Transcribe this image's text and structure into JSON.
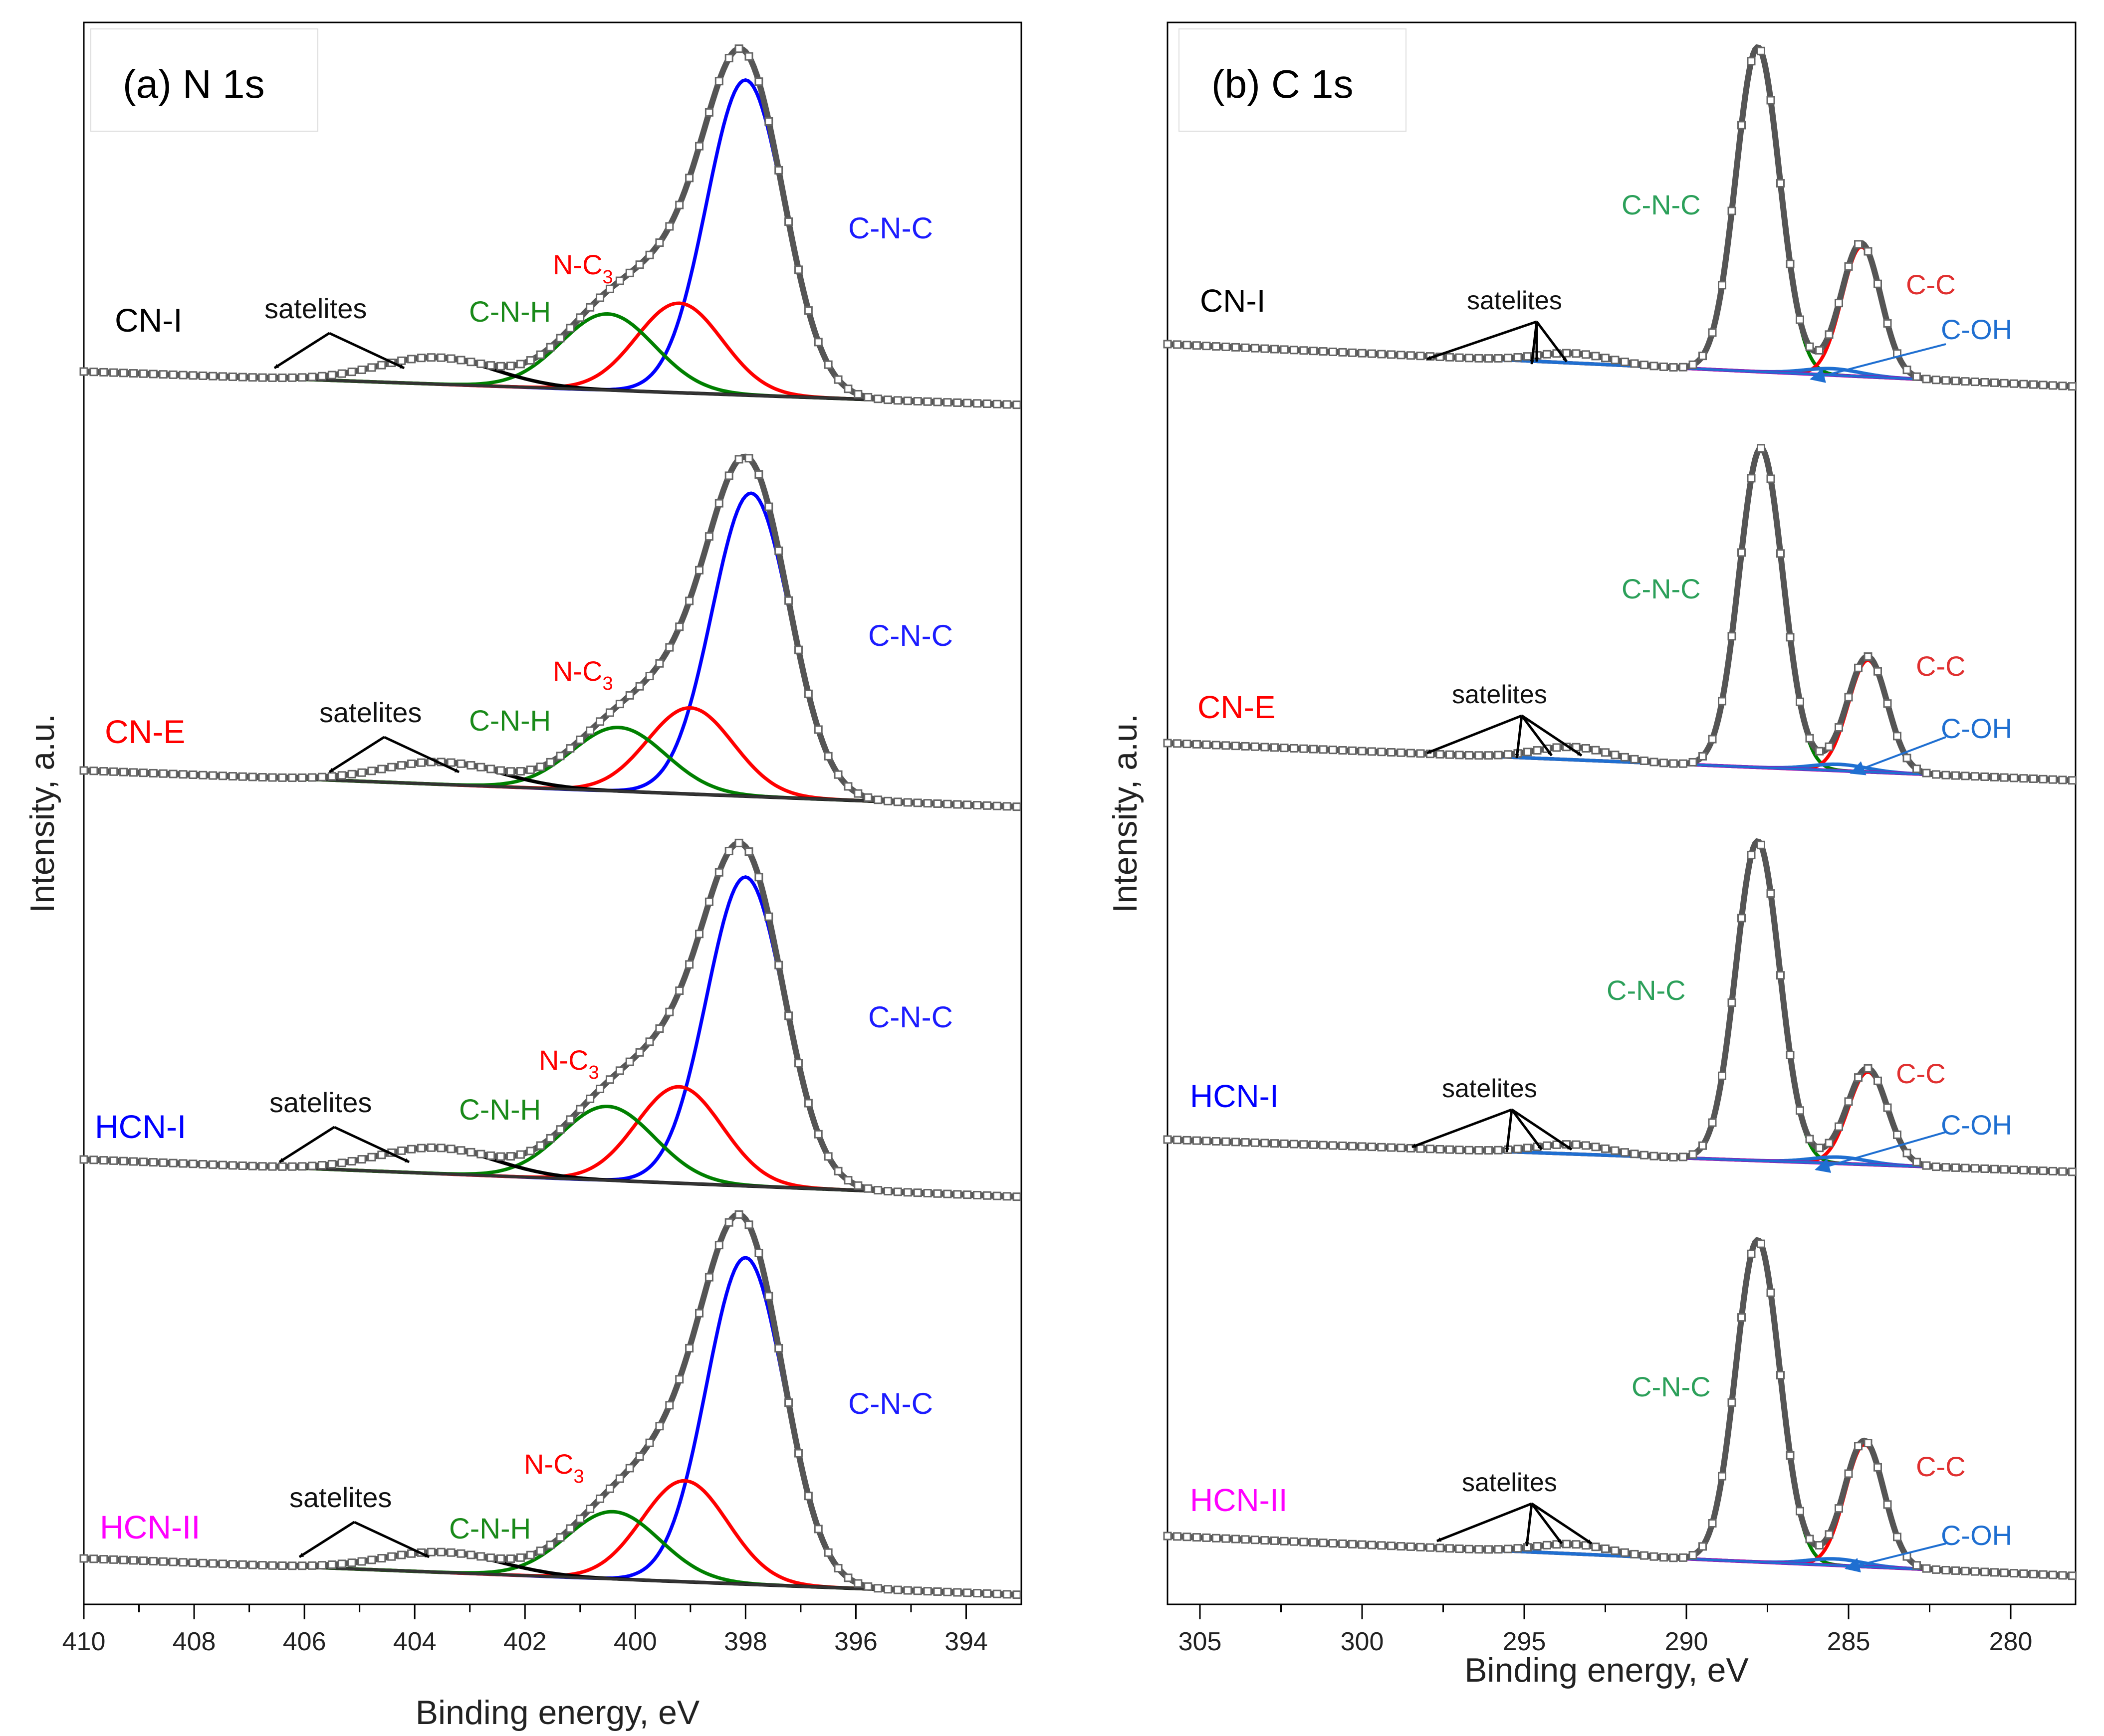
{
  "figure": {
    "panels": [
      {
        "title": "(a) N 1s",
        "xlabel": "Binding energy, eV",
        "ylabel": "Intensity, a.u.",
        "samples": [
          "CN-I",
          "CN-E",
          "HCN-I",
          "HCN-II"
        ],
        "peak_labels": [
          "C-N-C",
          "N-C3",
          "C-N-H",
          "satelites"
        ]
      },
      {
        "title": "(b) C 1s",
        "xlabel": "Binding energy, eV",
        "ylabel": "Intensity, a.u.",
        "samples": [
          "CN-I",
          "CN-E",
          "HCN-I",
          "HCN-II"
        ],
        "peak_labels": [
          "C-N-C",
          "C-C",
          "C-OH",
          "satelites"
        ]
      }
    ]
  },
  "chart_data": [
    {
      "type": "line",
      "title": "(a) N 1s",
      "xlabel": "Binding energy, eV",
      "ylabel": "Intensity, a.u.",
      "xlim": [
        410,
        393
      ],
      "x_reversed": true,
      "xticks": [
        410,
        408,
        406,
        404,
        402,
        400,
        398,
        396,
        394
      ],
      "tick_labels": [
        "410",
        "408",
        "406",
        "404",
        "402",
        "400",
        "398",
        "396",
        "394"
      ],
      "peaks_eV": {
        "C-N-C": 398.0,
        "N-C3": 399.2,
        "C-N-H": 400.5,
        "satelites": 403.6
      },
      "samples": [
        {
          "name": "CN-I",
          "color": "#000000",
          "components": [
            {
              "label": "C-N-C",
              "center": 398.0,
              "height": 0.95,
              "color": "#0000ff"
            },
            {
              "label": "N-C3",
              "center": 399.2,
              "height": 0.27,
              "color": "#ff0000"
            },
            {
              "label": "C-N-H",
              "center": 400.5,
              "height": 0.23,
              "color": "#008000"
            },
            {
              "label": "satelites",
              "center": 403.6,
              "height": 0.08,
              "color": "#000000"
            }
          ]
        },
        {
          "name": "CN-E",
          "color": "#ff0000",
          "components": [
            {
              "label": "C-N-C",
              "center": 397.9,
              "height": 0.95,
              "color": "#0000ff"
            },
            {
              "label": "N-C3",
              "center": 399.0,
              "height": 0.27,
              "color": "#ff0000"
            },
            {
              "label": "C-N-H",
              "center": 400.3,
              "height": 0.2,
              "color": "#008000"
            },
            {
              "label": "satelites",
              "center": 403.5,
              "height": 0.07,
              "color": "#000000"
            }
          ]
        },
        {
          "name": "HCN-I",
          "color": "#0000ff",
          "components": [
            {
              "label": "C-N-C",
              "center": 398.0,
              "height": 0.96,
              "color": "#0000ff"
            },
            {
              "label": "N-C3",
              "center": 399.2,
              "height": 0.3,
              "color": "#ff0000"
            },
            {
              "label": "C-N-H",
              "center": 400.5,
              "height": 0.23,
              "color": "#008000"
            },
            {
              "label": "satelites",
              "center": 403.6,
              "height": 0.08,
              "color": "#000000"
            }
          ]
        },
        {
          "name": "HCN-II",
          "color": "#ff00ff",
          "components": [
            {
              "label": "C-N-C",
              "center": 398.0,
              "height": 0.97,
              "color": "#0000ff"
            },
            {
              "label": "N-C3",
              "center": 399.1,
              "height": 0.3,
              "color": "#ff0000"
            },
            {
              "label": "C-N-H",
              "center": 400.4,
              "height": 0.2,
              "color": "#008000"
            },
            {
              "label": "satelites",
              "center": 403.5,
              "height": 0.06,
              "color": "#000000"
            }
          ]
        }
      ]
    },
    {
      "type": "line",
      "title": "(b) C 1s",
      "xlabel": "Binding energy, eV",
      "ylabel": "Intensity, a.u.",
      "xlim": [
        306,
        278
      ],
      "x_reversed": true,
      "xticks": [
        305,
        300,
        295,
        290,
        285,
        280
      ],
      "tick_labels": [
        "305",
        "300",
        "295",
        "290",
        "285",
        "280"
      ],
      "peaks_eV": {
        "C-N-C": 287.8,
        "C-C": 284.6,
        "C-OH": 285.5,
        "satelites": 293.5
      },
      "samples": [
        {
          "name": "CN-I",
          "color": "#000000",
          "components": [
            {
              "label": "C-N-C",
              "center": 287.8,
              "height": 1.0,
              "color": "#008000"
            },
            {
              "label": "C-C",
              "center": 284.6,
              "height": 0.4,
              "color": "#ff0000"
            },
            {
              "label": "C-OH",
              "center": 285.5,
              "height": 0.02,
              "color": "#1f6fd1"
            },
            {
              "label": "satelites",
              "center": 293.5,
              "height": 0.03,
              "color": "#b000b0"
            }
          ]
        },
        {
          "name": "CN-E",
          "color": "#ff0000",
          "components": [
            {
              "label": "C-N-C",
              "center": 287.7,
              "height": 1.0,
              "color": "#008000"
            },
            {
              "label": "C-C",
              "center": 284.4,
              "height": 0.35,
              "color": "#ff0000"
            },
            {
              "label": "C-OH",
              "center": 285.3,
              "height": 0.02,
              "color": "#1f6fd1"
            },
            {
              "label": "satelites",
              "center": 293.5,
              "height": 0.04,
              "color": "#b000b0"
            }
          ]
        },
        {
          "name": "HCN-I",
          "color": "#0000ff",
          "components": [
            {
              "label": "C-N-C",
              "center": 287.8,
              "height": 1.0,
              "color": "#008000"
            },
            {
              "label": "C-C",
              "center": 284.4,
              "height": 0.29,
              "color": "#ff0000"
            },
            {
              "label": "C-OH",
              "center": 285.3,
              "height": 0.02,
              "color": "#1f6fd1"
            },
            {
              "label": "satelites",
              "center": 293.5,
              "height": 0.03,
              "color": "#b000b0"
            }
          ]
        },
        {
          "name": "HCN-II",
          "color": "#ff00ff",
          "components": [
            {
              "label": "C-N-C",
              "center": 287.8,
              "height": 1.0,
              "color": "#008000"
            },
            {
              "label": "C-C",
              "center": 284.5,
              "height": 0.38,
              "color": "#ff0000"
            },
            {
              "label": "C-OH",
              "center": 285.4,
              "height": 0.02,
              "color": "#1f6fd1"
            },
            {
              "label": "satelites",
              "center": 293.5,
              "height": 0.03,
              "color": "#b000b0"
            }
          ]
        }
      ]
    }
  ]
}
